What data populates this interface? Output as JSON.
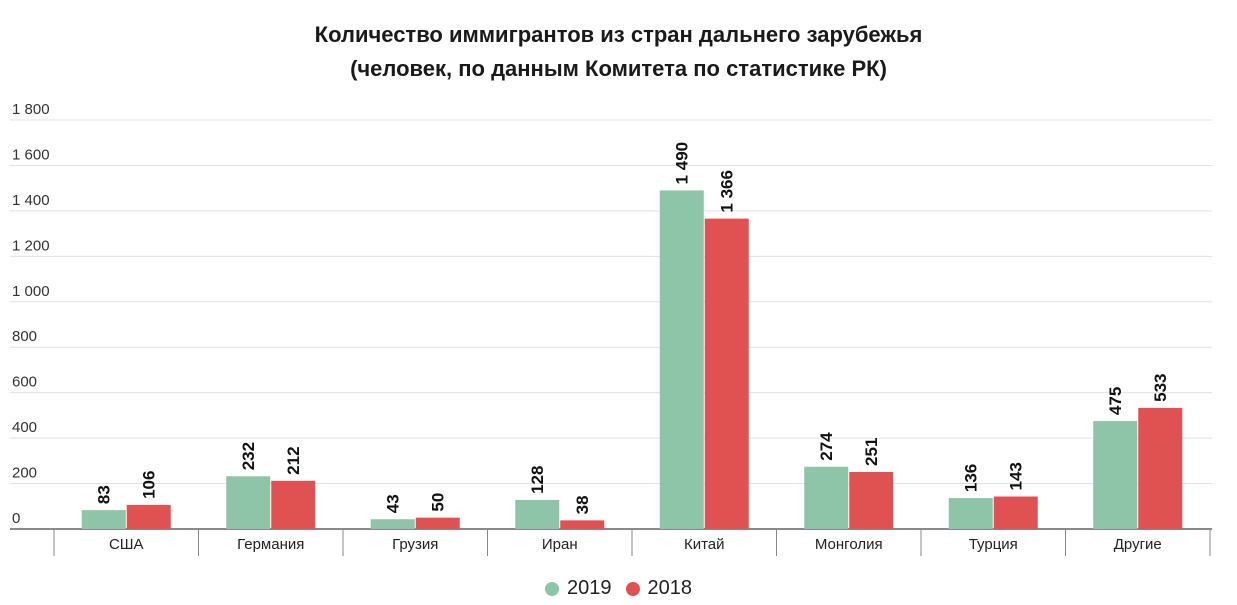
{
  "chart_data": {
    "type": "bar",
    "title": "Количество иммигрантов из стран дальнего зарубежья",
    "subtitle": "(человек, по данным Комитета по статистике РК)",
    "categories": [
      "США",
      "Германия",
      "Грузия",
      "Иран",
      "Китай",
      "Монголия",
      "Турция",
      "Другие"
    ],
    "series": [
      {
        "name": "2019",
        "color": "#8ec4a7",
        "values": [
          83,
          232,
          43,
          128,
          1490,
          274,
          136,
          475
        ],
        "labels": [
          "83",
          "232",
          "43",
          "128",
          "1 490",
          "274",
          "136",
          "475"
        ]
      },
      {
        "name": "2018",
        "color": "#e05252",
        "values": [
          106,
          212,
          50,
          38,
          1366,
          251,
          143,
          533
        ],
        "labels": [
          "106",
          "212",
          "50",
          "38",
          "1 366",
          "251",
          "143",
          "533"
        ]
      }
    ],
    "yticks": [
      0,
      200,
      400,
      600,
      800,
      1000,
      1200,
      1400,
      1600,
      1800
    ],
    "ytick_labels": [
      "0",
      "200",
      "400",
      "600",
      "800",
      "1 000",
      "1 200",
      "1 400",
      "1 600",
      "1 800"
    ],
    "ylim": [
      0,
      1800
    ],
    "grid": true,
    "legend": "bottom-center"
  }
}
